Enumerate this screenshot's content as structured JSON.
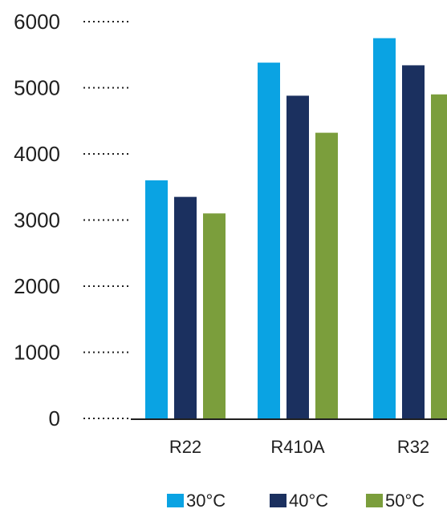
{
  "chart_data": {
    "type": "bar",
    "categories": [
      "R22",
      "R410A",
      "R32"
    ],
    "series": [
      {
        "name": "30°C",
        "color": "#0AA3E3",
        "values": [
          3600,
          5380,
          5750
        ]
      },
      {
        "name": "40°C",
        "color": "#1B305F",
        "values": [
          3350,
          4880,
          5340
        ]
      },
      {
        "name": "50°C",
        "color": "#7B9E3C",
        "values": [
          3100,
          4320,
          4900
        ]
      }
    ],
    "yticks": [
      0,
      1000,
      2000,
      3000,
      4000,
      5000,
      6000
    ],
    "ylim": [
      0,
      6000
    ],
    "grid": "dotted guide marks next to y tick labels",
    "legend_position": "bottom"
  }
}
